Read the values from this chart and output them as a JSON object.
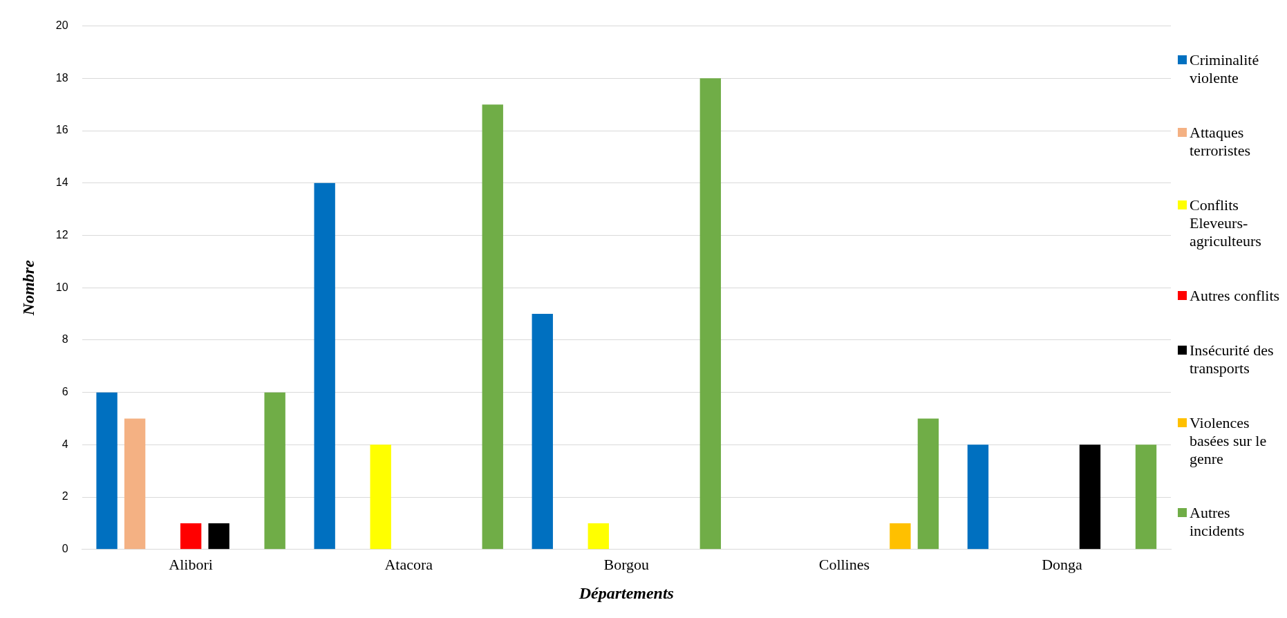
{
  "chart_data": {
    "type": "bar",
    "xlabel": "Départements",
    "ylabel": "Nombre",
    "categories": [
      "Alibori",
      "Atacora",
      "Borgou",
      "Collines",
      "Donga"
    ],
    "series": [
      {
        "name": "Criminalité violente",
        "color": "#0070c0",
        "values": [
          6,
          14,
          9,
          0,
          4
        ]
      },
      {
        "name": "Attaques terroristes",
        "color": "#f4b183",
        "values": [
          5,
          0,
          0,
          0,
          0
        ]
      },
      {
        "name": "Conflits Eleveurs-agriculteurs",
        "color": "#ffff00",
        "values": [
          0,
          4,
          1,
          0,
          0
        ]
      },
      {
        "name": "Autres conflits",
        "color": "#ff0000",
        "values": [
          1,
          0,
          0,
          0,
          0
        ]
      },
      {
        "name": "Insécurité des transports",
        "color": "#000000",
        "values": [
          1,
          0,
          0,
          0,
          4
        ]
      },
      {
        "name": "Violences basées sur le genre",
        "color": "#ffc000",
        "values": [
          0,
          0,
          0,
          1,
          0
        ]
      },
      {
        "name": "Autres incidents",
        "color": "#70ad47",
        "values": [
          6,
          17,
          18,
          5,
          4
        ]
      }
    ],
    "ylim": [
      0,
      20
    ],
    "yticks": [
      0,
      2,
      4,
      6,
      8,
      10,
      12,
      14,
      16,
      18,
      20
    ],
    "grid": "y",
    "legend": "right"
  }
}
